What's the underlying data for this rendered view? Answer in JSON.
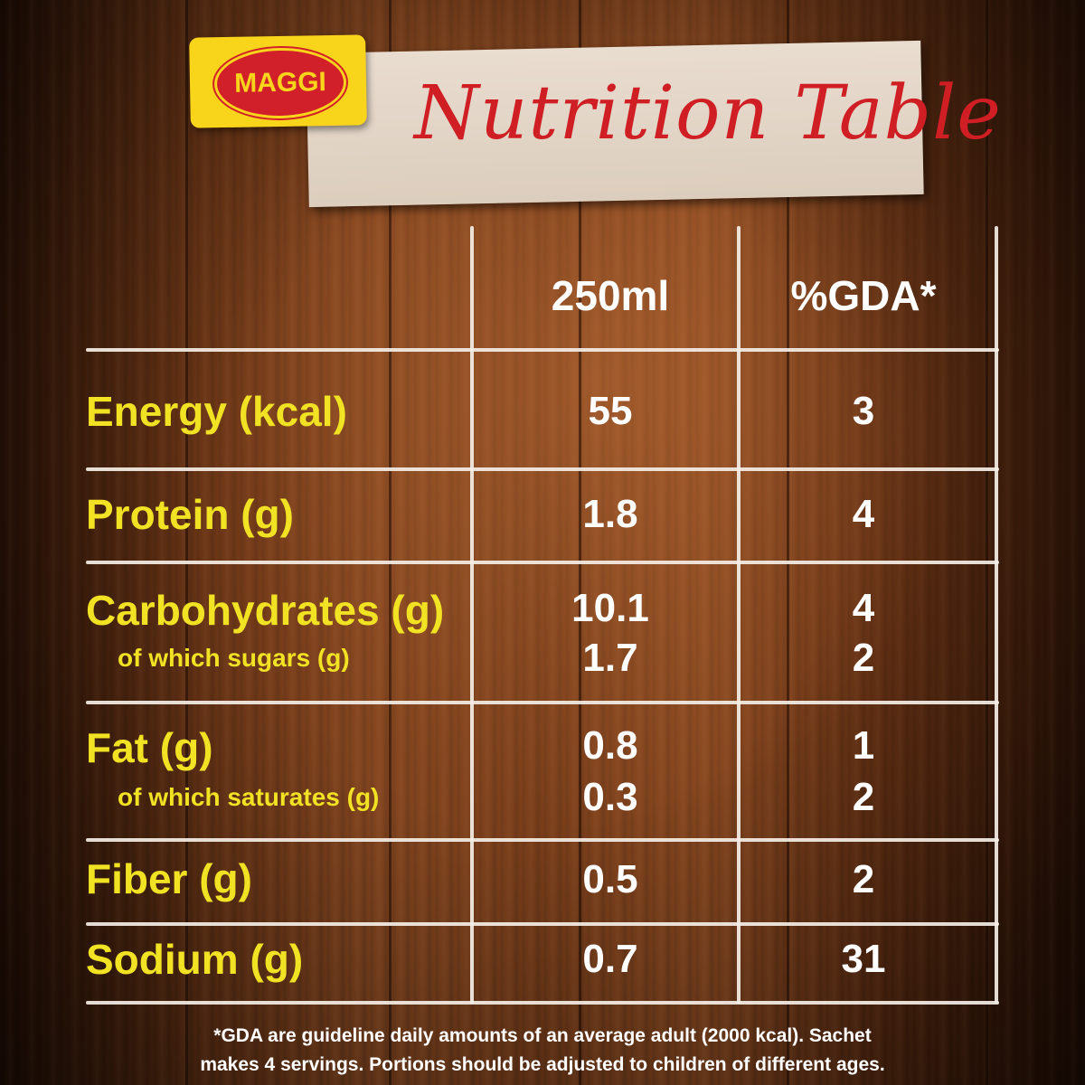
{
  "brand": {
    "logo_text": "MAGGI",
    "colors": {
      "logo_yellow": "#f8d41a",
      "logo_red": "#d2202a",
      "title_red": "#cf1f24",
      "label_yellow": "#f2e224",
      "value_white": "#ffffff"
    }
  },
  "header": {
    "title": "Nutrition Table"
  },
  "table": {
    "columns": [
      "250ml",
      "%GDA*"
    ],
    "rows": [
      {
        "label": "Energy (kcal)",
        "value": "55",
        "gda": "3"
      },
      {
        "label": "Protein (g)",
        "value": "1.8",
        "gda": "4"
      },
      {
        "label": "Carbohydrates (g)",
        "value": "10.1",
        "gda": "4",
        "sub_label": "of which sugars (g)",
        "sub_value": "1.7",
        "sub_gda": "2"
      },
      {
        "label": "Fat (g)",
        "value": "0.8",
        "gda": "1",
        "sub_label": "of which saturates (g)",
        "sub_value": "0.3",
        "sub_gda": "2"
      },
      {
        "label": "Fiber (g)",
        "value": "0.5",
        "gda": "2"
      },
      {
        "label": "Sodium (g)",
        "value": "0.7",
        "gda": "31"
      }
    ]
  },
  "footnote": {
    "line1": "*GDA are guideline daily amounts of an average adult (2000 kcal). Sachet",
    "line2": "makes 4 servings. Portions should be adjusted to children of different ages."
  }
}
